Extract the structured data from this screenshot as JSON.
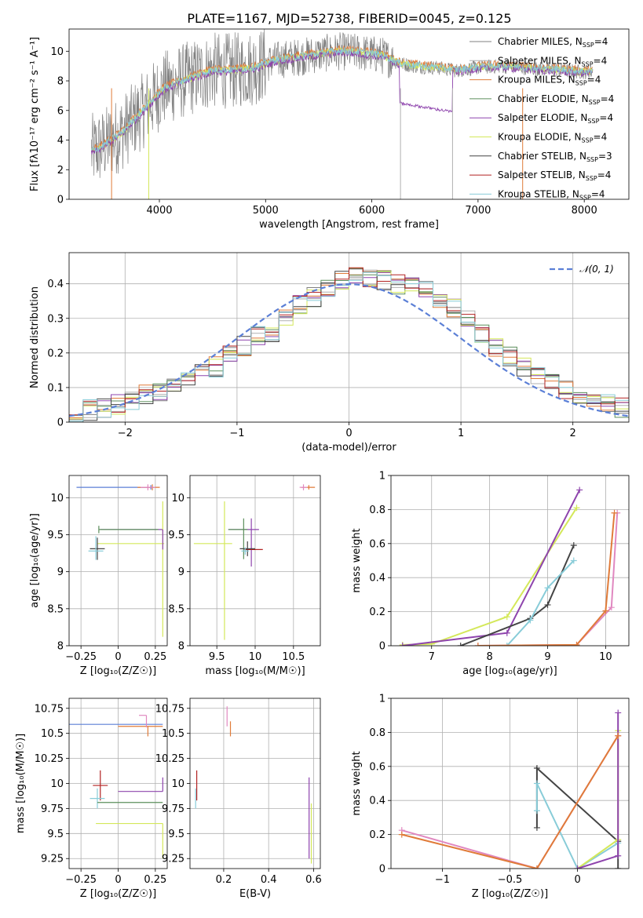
{
  "figure": {
    "title": "PLATE=1167, MJD=52738, FIBERID=0045, z=0.125"
  },
  "colors": {
    "Chabrier MILES": "#808080",
    "Salpeter MILES": "#b0b0b0",
    "Kroupa MILES": "#e07b39",
    "Chabrier ELODIE": "#5c8f5c",
    "Salpeter ELODIE": "#8e44ad",
    "Kroupa ELODIE": "#d4e85a",
    "Chabrier STELIB": "#444444",
    "Salpeter STELIB": "#b22222",
    "Kroupa STELIB": "#88ccd8",
    "blue_model": "#5b7fd6",
    "pink_model": "#e088c0"
  },
  "chart_data": [
    {
      "id": "spectrum",
      "type": "line",
      "xlabel": "wavelength [Angstrom, rest frame]",
      "ylabel": "Flux [fλ10⁻¹⁷ erg cm⁻² s⁻¹ A⁻¹]",
      "xlim": [
        3150,
        8420
      ],
      "ylim": [
        0,
        11.5
      ],
      "xticks": [
        4000,
        5000,
        6000,
        7000,
        8000
      ],
      "yticks": [
        0,
        2,
        4,
        6,
        8,
        10
      ],
      "legend_position": "top-right",
      "legend": [
        "Chabrier MILES, N_SSP=4",
        "Salpeter MILES, N_SSP=4",
        "Kroupa MILES, N_SSP=4",
        "Chabrier ELODIE, N_SSP=4",
        "Salpeter ELODIE, N_SSP=4",
        "Kroupa ELODIE, N_SSP=4",
        "Chabrier STELIB, N_SSP=3",
        "Salpeter STELIB, N_SSP=4",
        "Kroupa STELIB, N_SSP=4"
      ],
      "model_envelope": {
        "x": [
          3350,
          3450,
          3550,
          3650,
          3750,
          3850,
          3950,
          4050,
          4150,
          4300,
          4500,
          4700,
          4900,
          5100,
          5300,
          5500,
          5700,
          5900,
          6100,
          6250,
          6400,
          6600,
          6800,
          7000,
          7200,
          7400,
          7600,
          7800,
          8000
        ],
        "y": [
          3.2,
          3.5,
          4.0,
          4.5,
          5.3,
          6.0,
          6.8,
          7.5,
          7.8,
          8.2,
          8.7,
          8.7,
          8.9,
          9.4,
          9.6,
          9.8,
          10.0,
          9.9,
          9.7,
          9.2,
          9.0,
          8.9,
          8.7,
          8.9,
          9.0,
          8.9,
          8.8,
          8.7,
          8.6
        ]
      }
    },
    {
      "id": "residuals",
      "type": "step",
      "xlabel": "(data-model)/error",
      "ylabel": "Normed distribution",
      "xlim": [
        -2.5,
        2.5
      ],
      "ylim": [
        0,
        0.49
      ],
      "xticks": [
        -2,
        -1,
        0,
        1,
        2
      ],
      "yticks": [
        0.0,
        0.1,
        0.2,
        0.3,
        0.4
      ],
      "legend": [
        "𝒩(0, 1)"
      ],
      "legend_position": "top-right",
      "bin_edges": [
        -2.5,
        -2.375,
        -2.25,
        -2.125,
        -2.0,
        -1.875,
        -1.75,
        -1.625,
        -1.5,
        -1.375,
        -1.25,
        -1.125,
        -1.0,
        -0.875,
        -0.75,
        -0.625,
        -0.5,
        -0.375,
        -0.25,
        -0.125,
        0.0,
        0.125,
        0.25,
        0.375,
        0.5,
        0.625,
        0.75,
        0.875,
        1.0,
        1.125,
        1.25,
        1.375,
        1.5,
        1.625,
        1.75,
        1.875,
        2.0,
        2.125,
        2.25,
        2.375,
        2.5
      ],
      "hist_mean": [
        0.025,
        0.035,
        0.04,
        0.05,
        0.06,
        0.08,
        0.09,
        0.1,
        0.12,
        0.15,
        0.16,
        0.2,
        0.22,
        0.25,
        0.26,
        0.3,
        0.34,
        0.36,
        0.38,
        0.41,
        0.43,
        0.42,
        0.41,
        0.4,
        0.39,
        0.38,
        0.36,
        0.33,
        0.3,
        0.26,
        0.22,
        0.19,
        0.16,
        0.13,
        0.11,
        0.09,
        0.07,
        0.06,
        0.05,
        0.04
      ]
    },
    {
      "id": "age_vs_Z",
      "type": "scatter",
      "xlabel": "Z [log₁₀(Z/Z☉)]",
      "ylabel": "age  [log₁₀(age/yr)]",
      "xlim": [
        -0.33,
        0.33
      ],
      "ylim": [
        8.0,
        10.3
      ],
      "xticks": [
        -0.25,
        0.0,
        0.25
      ],
      "yticks": [
        8.0,
        8.5,
        9.0,
        9.5,
        10.0
      ]
    },
    {
      "id": "age_vs_mass",
      "type": "scatter",
      "xlabel": "mass [log₁₀(M/M☉)]",
      "xlim": [
        9.15,
        10.85
      ],
      "ylim": [
        8.0,
        10.3
      ],
      "xticks": [
        9.5,
        10.0,
        10.5
      ],
      "yticks": [
        8.0,
        8.5,
        9.0,
        9.5,
        10.0
      ]
    },
    {
      "id": "massweight_vs_age",
      "type": "line",
      "xlabel": "age  [log₁₀(age/yr)]",
      "ylabel": "mass weight",
      "xlim": [
        6.3,
        10.4
      ],
      "ylim": [
        0.0,
        1.0
      ],
      "xticks": [
        7,
        8,
        9,
        10
      ],
      "yticks": [
        0.0,
        0.2,
        0.4,
        0.6,
        0.8,
        1.0
      ]
    },
    {
      "id": "mass_vs_Z",
      "type": "scatter",
      "xlabel": "Z [log₁₀(Z/Z☉)]",
      "ylabel": "mass [log₁₀(M/M☉)]",
      "xlim": [
        -0.33,
        0.33
      ],
      "ylim": [
        9.15,
        10.85
      ],
      "xticks": [
        -0.25,
        0.0,
        0.25
      ],
      "yticks": [
        9.25,
        9.5,
        9.75,
        10.0,
        10.25,
        10.5,
        10.75
      ]
    },
    {
      "id": "mass_vs_ebv",
      "type": "scatter",
      "xlabel": "E(B-V)",
      "xlim": [
        0.05,
        0.63
      ],
      "ylim": [
        9.15,
        10.85
      ],
      "xticks": [
        0.2,
        0.4,
        0.6
      ],
      "yticks": [
        9.25,
        9.5,
        9.75,
        10.0,
        10.25,
        10.5,
        10.75
      ]
    },
    {
      "id": "massweight_vs_Z",
      "type": "line",
      "xlabel": "Z [log₁₀(Z/Z☉)]",
      "ylabel": "mass weight",
      "xlim": [
        -1.38,
        0.38
      ],
      "ylim": [
        0.0,
        1.0
      ],
      "xticks": [
        -1.0,
        -0.5,
        0.0
      ],
      "yticks": [
        0.0,
        0.2,
        0.4,
        0.6,
        0.8,
        1.0
      ]
    }
  ]
}
